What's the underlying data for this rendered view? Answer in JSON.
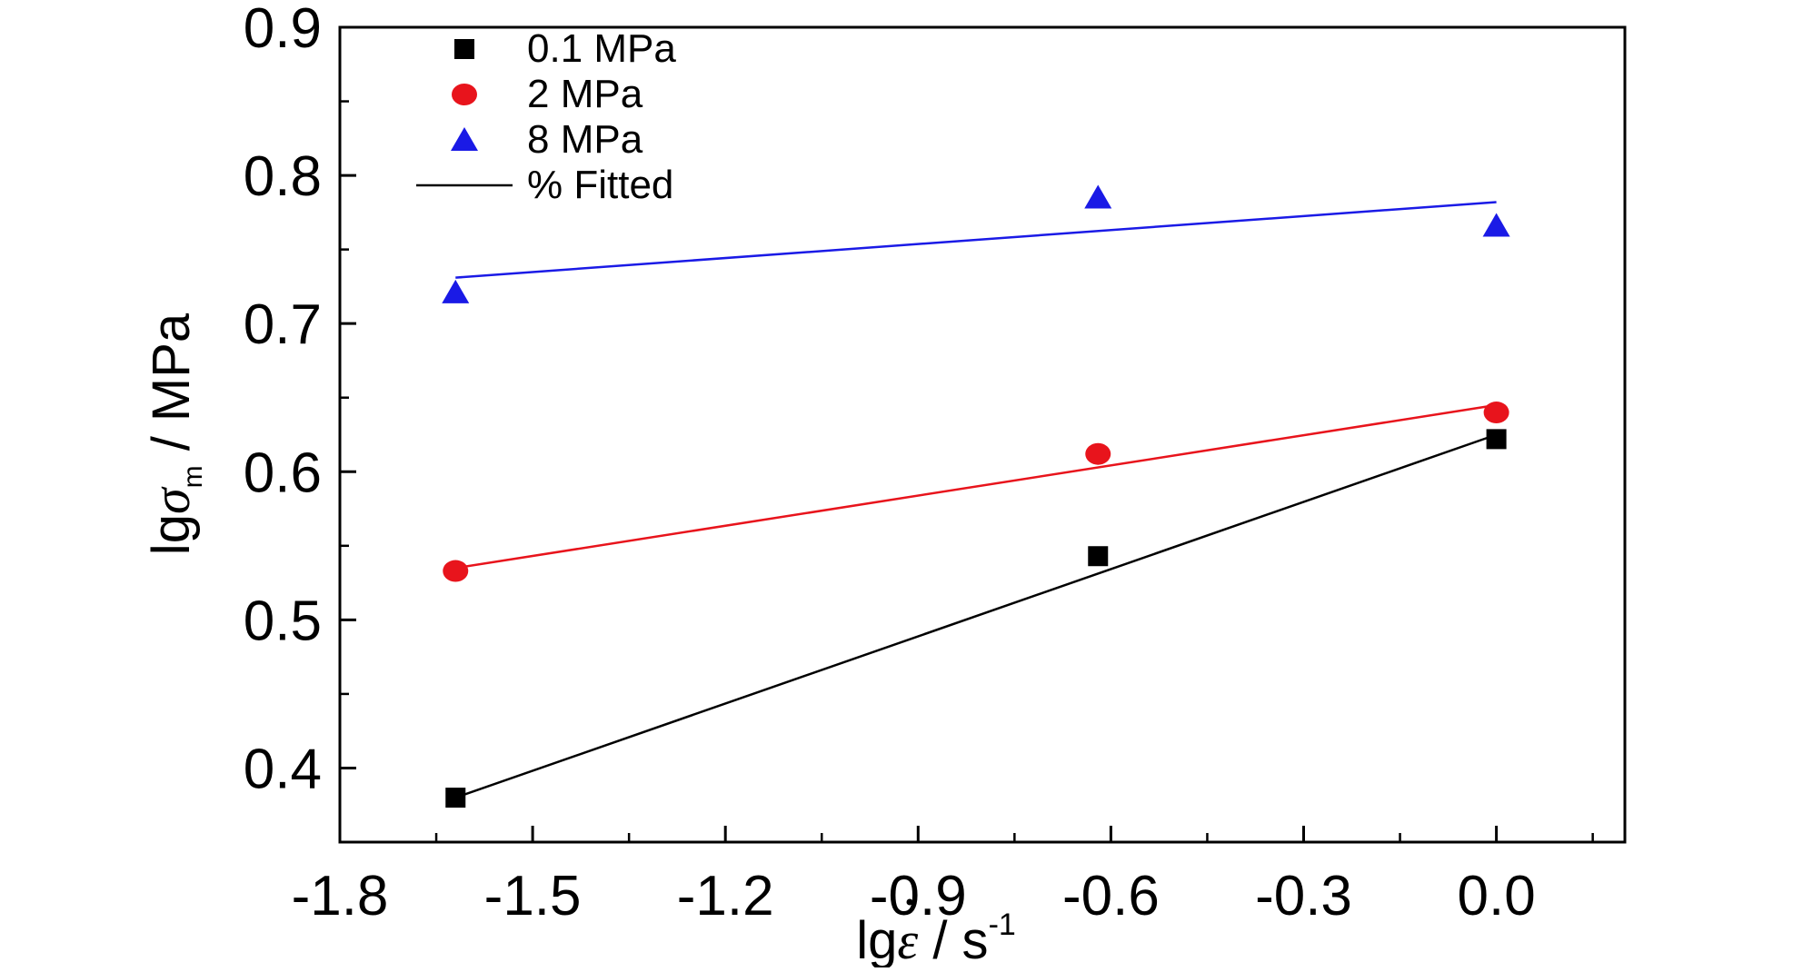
{
  "chart_data": {
    "type": "scatter",
    "xlabel": {
      "base": "lg",
      "symbol": "ε",
      "unit": " / s",
      "sup": "-1"
    },
    "ylabel": {
      "base": "lg",
      "symbol": "σ",
      "sub": "m",
      "unit": " / MPa"
    },
    "xlim": [
      -1.8,
      0.2
    ],
    "ylim": [
      0.35,
      0.9
    ],
    "xticks": [
      -1.8,
      -1.5,
      -1.2,
      -0.9,
      -0.6,
      -0.3,
      0.0
    ],
    "xtick_labels": [
      "-1.8",
      "-1.5",
      "-1.2",
      "-0.9",
      "-0.6",
      "-0.3",
      "0.0"
    ],
    "yticks": [
      0.4,
      0.5,
      0.6,
      0.7,
      0.8,
      0.9
    ],
    "ytick_labels": [
      "0.4",
      "0.5",
      "0.6",
      "0.7",
      "0.8",
      "0.9"
    ],
    "grid": false,
    "legend_placement": "top-left",
    "series": [
      {
        "name": "0.1 MPa",
        "marker": "square",
        "color": "#000000",
        "x": [
          -1.62,
          -0.62,
          0.0
        ],
        "y": [
          0.38,
          0.543,
          0.622
        ],
        "fit": {
          "x": [
            -1.62,
            0.0
          ],
          "y": [
            0.38,
            0.625
          ]
        }
      },
      {
        "name": "2 MPa",
        "marker": "circle",
        "color": "#e8141c",
        "x": [
          -1.62,
          -0.62,
          0.0
        ],
        "y": [
          0.533,
          0.612,
          0.64
        ],
        "fit": {
          "x": [
            -1.62,
            0.0
          ],
          "y": [
            0.535,
            0.645
          ]
        }
      },
      {
        "name": "8 MPa",
        "marker": "triangle",
        "color": "#1a1ae6",
        "x": [
          -1.62,
          -0.62,
          0.0
        ],
        "y": [
          0.721,
          0.785,
          0.766
        ],
        "fit": {
          "x": [
            -1.62,
            0.0
          ],
          "y": [
            0.731,
            0.782
          ]
        }
      }
    ],
    "fit_legend_label": "% Fitted"
  }
}
